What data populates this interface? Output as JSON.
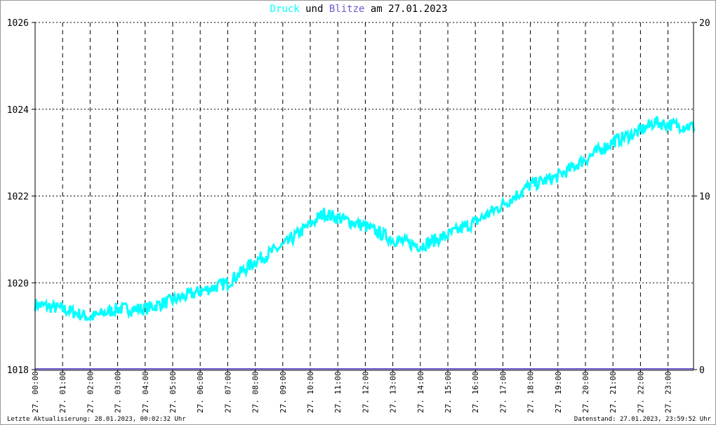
{
  "chart_data": {
    "type": "line",
    "title": {
      "series1": "Druck",
      "joiner": "und",
      "series2": "Blitze",
      "suffix": "am 27.01.2023"
    },
    "x_tick_labels": [
      "27. 00:00",
      "27. 01:00",
      "27. 02:00",
      "27. 03:00",
      "27. 04:00",
      "27. 05:00",
      "27. 06:00",
      "27. 07:00",
      "27. 08:00",
      "27. 09:00",
      "27. 10:00",
      "27. 11:00",
      "27. 12:00",
      "27. 13:00",
      "27. 14:00",
      "27. 15:00",
      "27. 16:00",
      "27. 17:00",
      "27. 18:00",
      "27. 19:00",
      "27. 20:00",
      "27. 21:00",
      "27. 22:00",
      "27. 23:00"
    ],
    "x_range_hours": [
      0,
      24
    ],
    "y_left": {
      "range": [
        1018,
        1026
      ],
      "ticks": [
        "1018",
        "1020",
        "1022",
        "1024",
        "1026"
      ]
    },
    "y_right": {
      "range": [
        0,
        20
      ],
      "ticks": [
        "0",
        "10",
        "20"
      ]
    },
    "grid": true,
    "series": [
      {
        "name": "Druck",
        "color": "#00ffff",
        "axis": "left",
        "x_hours": [
          0,
          1,
          2,
          3,
          4,
          5,
          6,
          7,
          8,
          9,
          10,
          10.5,
          11,
          12,
          13,
          14,
          15,
          16,
          17,
          18,
          19,
          20,
          21,
          22,
          22.5,
          23,
          24
        ],
        "values": [
          1019.5,
          1019.4,
          1019.2,
          1019.4,
          1019.4,
          1019.6,
          1019.8,
          1020.0,
          1020.5,
          1020.85,
          1021.35,
          1021.6,
          1021.5,
          1021.3,
          1021.0,
          1020.85,
          1021.1,
          1021.4,
          1021.8,
          1022.25,
          1022.45,
          1022.85,
          1023.25,
          1023.5,
          1023.7,
          1023.65,
          1023.6
        ]
      },
      {
        "name": "Blitze",
        "color": "#6a5acd",
        "axis": "right",
        "x_hours": [
          0,
          24
        ],
        "values": [
          0,
          0
        ]
      }
    ]
  },
  "footer": {
    "last_update": "Letzte Aktualisierung: 28.01.2023, 00:02:32 Uhr",
    "data_state": "Datenstand: 27.01.2023, 23:59:52 Uhr"
  }
}
